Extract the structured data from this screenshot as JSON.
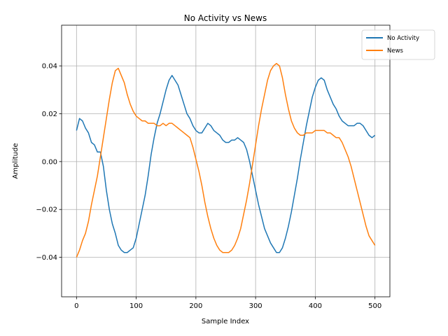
{
  "chart_data": {
    "type": "line",
    "title": "No Activity vs News",
    "xlabel": "Sample Index",
    "ylabel": "Amplitude",
    "xlim": [
      -25,
      525
    ],
    "ylim": [
      -0.0565,
      0.057
    ],
    "xticks": [
      0,
      100,
      200,
      300,
      400,
      500
    ],
    "xtick_labels": [
      "0",
      "100",
      "200",
      "300",
      "400",
      "500"
    ],
    "yticks": [
      -0.04,
      -0.02,
      0.0,
      0.02,
      0.04
    ],
    "ytick_labels": [
      "−0.04",
      "−0.02",
      "0.00",
      "0.02",
      "0.04"
    ],
    "grid": true,
    "legend_position": "top-right",
    "series": [
      {
        "name": "No Activity",
        "color": "#1f77b4",
        "x": [
          0,
          5,
          10,
          15,
          20,
          25,
          30,
          35,
          40,
          45,
          50,
          55,
          60,
          65,
          70,
          75,
          80,
          85,
          90,
          95,
          100,
          105,
          110,
          115,
          120,
          125,
          130,
          135,
          140,
          145,
          150,
          155,
          160,
          165,
          170,
          175,
          180,
          185,
          190,
          195,
          200,
          205,
          210,
          215,
          220,
          225,
          230,
          235,
          240,
          245,
          250,
          255,
          260,
          265,
          270,
          275,
          280,
          285,
          290,
          295,
          300,
          305,
          310,
          315,
          320,
          325,
          330,
          335,
          340,
          345,
          350,
          355,
          360,
          365,
          370,
          375,
          380,
          385,
          390,
          395,
          400,
          405,
          410,
          415,
          420,
          425,
          430,
          435,
          440,
          445,
          450,
          455,
          460,
          465,
          470,
          475,
          480,
          485,
          490,
          495,
          500
        ],
        "y": [
          0.013,
          0.018,
          0.017,
          0.014,
          0.012,
          0.008,
          0.007,
          0.004,
          0.004,
          -0.002,
          -0.012,
          -0.02,
          -0.026,
          -0.03,
          -0.035,
          -0.037,
          -0.038,
          -0.038,
          -0.037,
          -0.036,
          -0.032,
          -0.026,
          -0.02,
          -0.014,
          -0.006,
          0.003,
          0.01,
          0.016,
          0.02,
          0.025,
          0.03,
          0.034,
          0.036,
          0.034,
          0.032,
          0.028,
          0.024,
          0.02,
          0.018,
          0.015,
          0.013,
          0.012,
          0.012,
          0.014,
          0.016,
          0.015,
          0.013,
          0.012,
          0.011,
          0.009,
          0.008,
          0.008,
          0.009,
          0.009,
          0.01,
          0.009,
          0.008,
          0.005,
          0.0,
          -0.006,
          -0.012,
          -0.018,
          -0.023,
          -0.028,
          -0.031,
          -0.034,
          -0.036,
          -0.038,
          -0.038,
          -0.036,
          -0.032,
          -0.027,
          -0.021,
          -0.014,
          -0.007,
          0.001,
          0.008,
          0.015,
          0.021,
          0.027,
          0.031,
          0.034,
          0.035,
          0.034,
          0.03,
          0.027,
          0.024,
          0.022,
          0.019,
          0.017,
          0.016,
          0.015,
          0.015,
          0.015,
          0.016,
          0.016,
          0.015,
          0.013,
          0.011,
          0.01,
          0.011
        ]
      },
      {
        "name": "News",
        "color": "#ff7f0e",
        "x": [
          0,
          5,
          10,
          15,
          20,
          25,
          30,
          35,
          40,
          45,
          50,
          55,
          60,
          65,
          70,
          75,
          80,
          85,
          90,
          95,
          100,
          105,
          110,
          115,
          120,
          125,
          130,
          135,
          140,
          145,
          150,
          155,
          160,
          165,
          170,
          175,
          180,
          185,
          190,
          195,
          200,
          205,
          210,
          215,
          220,
          225,
          230,
          235,
          240,
          245,
          250,
          255,
          260,
          265,
          270,
          275,
          280,
          285,
          290,
          295,
          300,
          305,
          310,
          315,
          320,
          325,
          330,
          335,
          340,
          345,
          350,
          355,
          360,
          365,
          370,
          375,
          380,
          385,
          390,
          395,
          400,
          405,
          410,
          415,
          420,
          425,
          430,
          435,
          440,
          445,
          450,
          455,
          460,
          465,
          470,
          475,
          480,
          485,
          490,
          495,
          500
        ],
        "y": [
          -0.04,
          -0.037,
          -0.033,
          -0.03,
          -0.025,
          -0.018,
          -0.012,
          -0.006,
          0.002,
          0.01,
          0.018,
          0.026,
          0.033,
          0.038,
          0.039,
          0.036,
          0.033,
          0.028,
          0.024,
          0.021,
          0.019,
          0.018,
          0.017,
          0.017,
          0.016,
          0.016,
          0.016,
          0.015,
          0.015,
          0.016,
          0.015,
          0.016,
          0.016,
          0.015,
          0.014,
          0.013,
          0.012,
          0.011,
          0.01,
          0.006,
          0.001,
          -0.004,
          -0.01,
          -0.017,
          -0.023,
          -0.028,
          -0.032,
          -0.035,
          -0.037,
          -0.038,
          -0.038,
          -0.038,
          -0.037,
          -0.035,
          -0.032,
          -0.028,
          -0.022,
          -0.016,
          -0.009,
          -0.001,
          0.007,
          0.015,
          0.022,
          0.028,
          0.034,
          0.038,
          0.04,
          0.041,
          0.04,
          0.035,
          0.028,
          0.022,
          0.017,
          0.014,
          0.012,
          0.011,
          0.011,
          0.012,
          0.012,
          0.012,
          0.013,
          0.013,
          0.013,
          0.013,
          0.012,
          0.012,
          0.011,
          0.01,
          0.01,
          0.008,
          0.005,
          0.002,
          -0.002,
          -0.007,
          -0.012,
          -0.017,
          -0.022,
          -0.027,
          -0.031,
          -0.033,
          -0.035
        ]
      }
    ]
  }
}
